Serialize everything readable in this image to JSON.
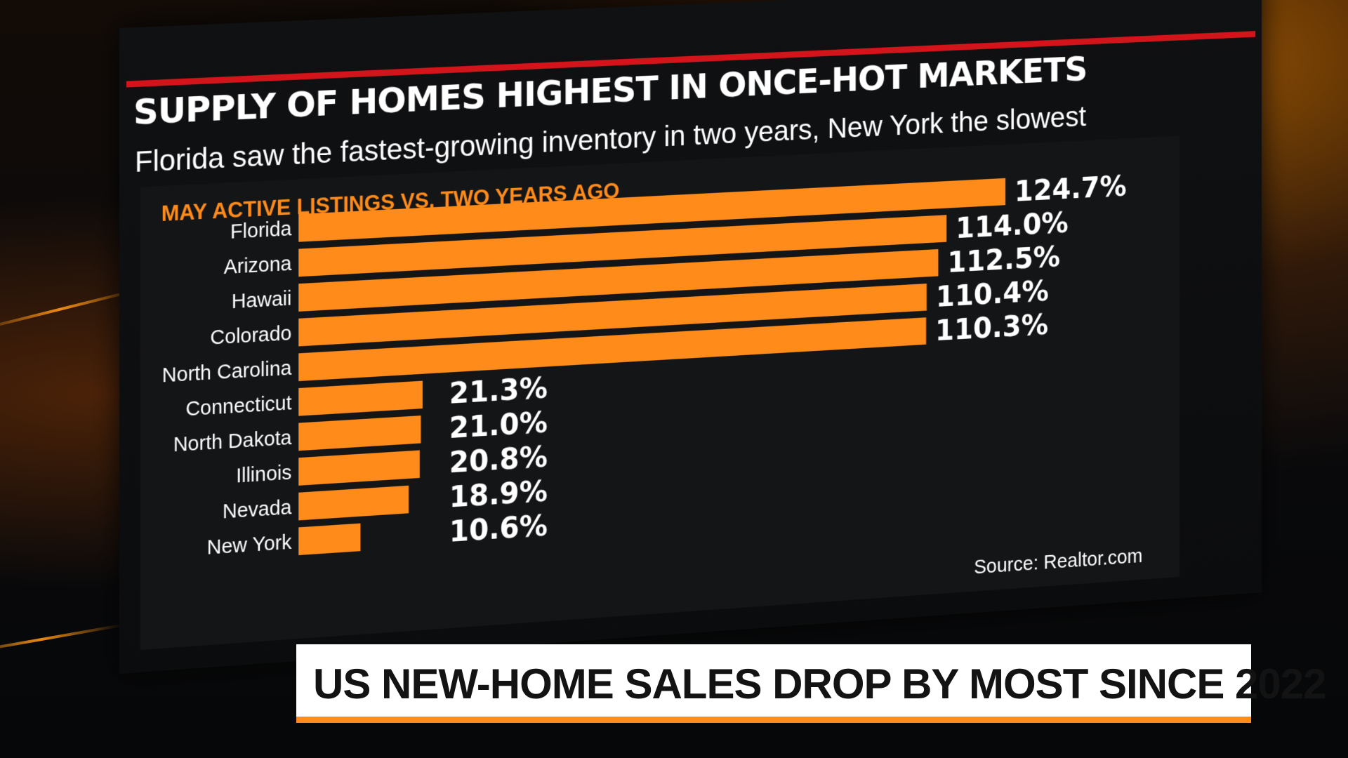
{
  "title": "SUPPLY OF HOMES HIGHEST IN ONCE-HOT MARKETS",
  "subtitle": "Florida saw the fastest-growing inventory in two years, New York the slowest",
  "source": "Source: Realtor.com",
  "lower_third": "US NEW-HOME SALES DROP BY MOST SINCE 2022",
  "colors": {
    "accent": "#ff8c1a",
    "red_rule": "#d3151b",
    "panel": "#141517",
    "text": "#ffffff"
  },
  "chart_data": {
    "type": "bar",
    "orientation": "horizontal",
    "title": "MAY ACTIVE LISTINGS VS. TWO YEARS AGO",
    "categories": [
      "Florida",
      "Arizona",
      "Hawaii",
      "Colorado",
      "North Carolina",
      "Connecticut",
      "North Dakota",
      "Illinois",
      "Nevada",
      "New York"
    ],
    "values": [
      124.7,
      114.0,
      112.5,
      110.4,
      110.3,
      21.3,
      21.0,
      20.8,
      18.9,
      10.6
    ],
    "labels": [
      "124.7%",
      "114.0%",
      "112.5%",
      "110.4%",
      "110.3%",
      "21.3%",
      "21.0%",
      "20.8%",
      "18.9%",
      "10.6%"
    ],
    "unit": "%",
    "xlim": [
      0,
      124.7
    ],
    "grid": false,
    "legend": "none",
    "bar_color": "#ff8c1a"
  }
}
